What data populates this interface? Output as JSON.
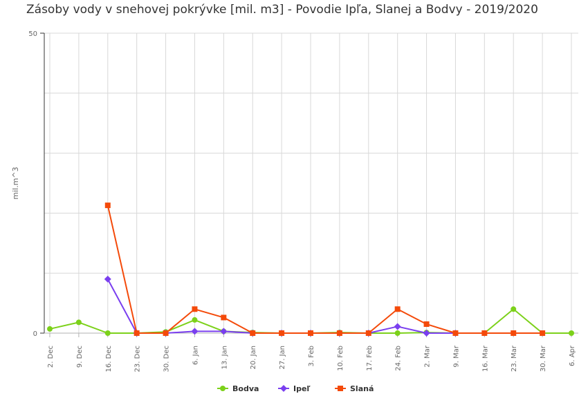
{
  "chart_data": {
    "type": "line",
    "title": "Zásoby vody v snehovej pokrývke [mil. m3] - Povodie Ipľa, Slanej a Bodvy - 2019/2020",
    "xlabel": "",
    "ylabel": "mil.m^3",
    "ylim": [
      0,
      50
    ],
    "yticks": [
      0,
      50
    ],
    "grid": true,
    "legend_position": "bottom",
    "categories": [
      "2. Dec",
      "9. Dec",
      "16. Dec",
      "23. Dec",
      "30. Dec",
      "6. Jan",
      "13. Jan",
      "20. Jan",
      "27. Jan",
      "3. Feb",
      "10. Feb",
      "17. Feb",
      "24. Feb",
      "2. Mar",
      "9. Mar",
      "16. Mar",
      "23. Mar",
      "30. Mar",
      "6. Apr"
    ],
    "series": [
      {
        "name": "Bodva",
        "color": "#7cd11a",
        "marker": "circle",
        "values": [
          0.7,
          1.8,
          0.0,
          0.0,
          0.2,
          2.2,
          0.3,
          0.1,
          0.0,
          0.0,
          0.1,
          0.0,
          0.0,
          0.1,
          0.0,
          0.0,
          4.0,
          0.0,
          0.0
        ]
      },
      {
        "name": "Ipeľ",
        "color": "#7a3fef",
        "marker": "diamond",
        "values": [
          null,
          null,
          9.0,
          0.0,
          0.0,
          0.3,
          0.3,
          0.0,
          0.0,
          0.0,
          0.0,
          0.0,
          1.1,
          0.0,
          0.0,
          null,
          null,
          null,
          null
        ]
      },
      {
        "name": "Slaná",
        "color": "#f44a0a",
        "marker": "square",
        "values": [
          null,
          null,
          21.3,
          0.0,
          0.0,
          4.0,
          2.6,
          0.0,
          0.0,
          0.0,
          0.0,
          0.0,
          4.0,
          1.5,
          0.0,
          0.0,
          0.0,
          0.0,
          null
        ]
      }
    ]
  }
}
